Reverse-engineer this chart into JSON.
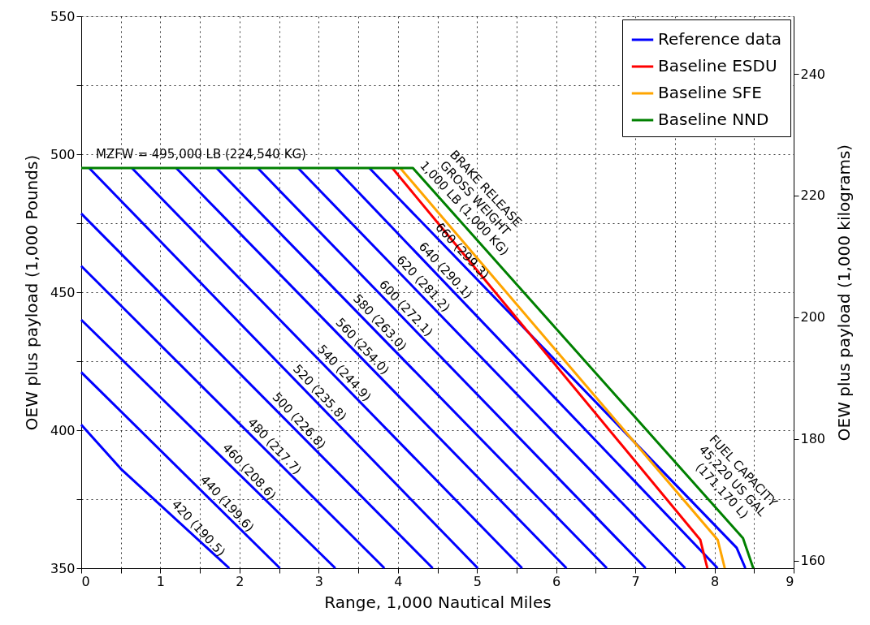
{
  "chart_data": {
    "type": "line",
    "xlabel": "Range, 1,000 Nautical Miles",
    "ylabel": "OEW plus payload (1,000 Pounds)",
    "y2label": "OEW plus payload (1,000 kilograms)",
    "xlim": [
      0,
      9
    ],
    "xticks": [
      0,
      {
        "value": 0.5,
        "label": null
      },
      1,
      {
        "value": 1.5,
        "label": null
      },
      2,
      {
        "value": 2.5,
        "label": null
      },
      3,
      {
        "value": 3.5,
        "label": null
      },
      4,
      {
        "value": 4.5,
        "label": null
      },
      5,
      {
        "value": 5.5,
        "label": null
      },
      6,
      {
        "value": 6.5,
        "label": null
      },
      7,
      {
        "value": 7.5,
        "label": null
      },
      8,
      {
        "value": 8.5,
        "label": null
      },
      9
    ],
    "ylim": [
      350,
      550
    ],
    "yticks": [
      350,
      {
        "value": 375,
        "label": null
      },
      400,
      {
        "value": 425,
        "label": null
      },
      450,
      {
        "value": 475,
        "label": null
      },
      500,
      {
        "value": 525,
        "label": null
      },
      550
    ],
    "y2lim": [
      158.76,
      249.48
    ],
    "y2ticks": [
      160,
      180,
      200,
      220,
      240
    ],
    "grid": true,
    "legend": "top right",
    "line_style": "solid",
    "marker": "none",
    "series": [
      {
        "name": "Reference data",
        "color": "#0000ff",
        "x": [
          0,
          0.5,
          1.87
        ],
        "values": [
          402,
          386,
          350
        ]
      },
      {
        "color": "#0000ff",
        "x": [
          0,
          2.51
        ],
        "values": [
          421,
          350
        ]
      },
      {
        "color": "#0000ff",
        "x": [
          0,
          3.21
        ],
        "values": [
          440,
          350
        ]
      },
      {
        "color": "#0000ff",
        "x": [
          0,
          3.83
        ],
        "values": [
          459.5,
          350
        ]
      },
      {
        "color": "#0000ff",
        "x": [
          0,
          4.44
        ],
        "values": [
          478.5,
          350
        ]
      },
      {
        "color": "#0000ff",
        "x": [
          0.1,
          5.01
        ],
        "values": [
          495,
          350
        ]
      },
      {
        "color": "#0000ff",
        "x": [
          0.64,
          5.57
        ],
        "values": [
          495,
          350
        ]
      },
      {
        "color": "#0000ff",
        "x": [
          1.2,
          6.13
        ],
        "values": [
          495,
          350
        ]
      },
      {
        "color": "#0000ff",
        "x": [
          1.71,
          6.64
        ],
        "values": [
          495,
          350
        ]
      },
      {
        "color": "#0000ff",
        "x": [
          2.23,
          7.13
        ],
        "values": [
          495,
          350
        ]
      },
      {
        "color": "#0000ff",
        "x": [
          2.74,
          7.63
        ],
        "values": [
          495,
          350
        ]
      },
      {
        "color": "#0000ff",
        "x": [
          3.21,
          8.04
        ],
        "values": [
          495,
          350
        ]
      },
      {
        "color": "#0000ff",
        "x": [
          3.64,
          8.28,
          8.39
        ],
        "values": [
          495,
          357.4,
          350
        ]
      },
      {
        "name": "Baseline ESDU",
        "color": "#ff0000",
        "x": [
          3.93,
          7.82,
          7.91
        ],
        "values": [
          495,
          360.3,
          350
        ]
      },
      {
        "name": "Baseline SFE",
        "color": "#ffa500",
        "x": [
          4.03,
          8.04,
          8.13
        ],
        "values": [
          495,
          360.3,
          350
        ]
      },
      {
        "name": "Baseline NND",
        "color": "#008000",
        "x": [
          0,
          4.19,
          8.36,
          8.49
        ],
        "values": [
          495,
          495,
          360.9,
          350
        ]
      }
    ],
    "annotations": [
      "MZFW = 495,000 LB (224,540 KG)",
      "BRAKE RELEASE\nGROSS WEIGHT\n1,000 LB (1,000 KG)",
      "FUEL CAPACITY\n45,220 US GAL\n(171,170 L)",
      {
        "text": "420 (190.5)",
        "x": 1.4,
        "y": 362.3
      },
      {
        "text": "440 (199.6)",
        "x": 1.76,
        "y": 371.2
      },
      {
        "text": "460 (208.6)",
        "x": 2.04,
        "y": 382.8
      },
      {
        "text": "480 (217.7)",
        "x": 2.36,
        "y": 392.0
      },
      {
        "text": "500 (226.8)",
        "x": 2.67,
        "y": 401.2
      },
      {
        "text": "520 (235.8)",
        "x": 2.93,
        "y": 411.4
      },
      {
        "text": "540 (244.9)",
        "x": 3.24,
        "y": 418.5
      },
      {
        "text": "560 (254.0)",
        "x": 3.47,
        "y": 428.2
      },
      {
        "text": "580 (263.0)",
        "x": 3.69,
        "y": 436.8
      },
      {
        "text": "600 (272.1)",
        "x": 4.02,
        "y": 442.0
      },
      {
        "text": "620 (281.2)",
        "x": 4.24,
        "y": 450.9
      },
      {
        "text": "640 (290.1)",
        "x": 4.52,
        "y": 455.7
      },
      {
        "text": "660 (299.3)",
        "x": 4.73,
        "y": 462.7
      }
    ]
  }
}
